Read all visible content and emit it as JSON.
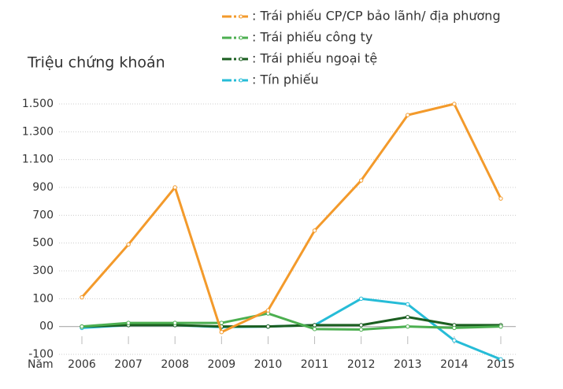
{
  "chart_data": {
    "type": "line",
    "ylabel": "Triệu chứng khoán",
    "xlabel": "Năm",
    "categories": [
      "2006",
      "2007",
      "2008",
      "2009",
      "2010",
      "2011",
      "2012",
      "2013",
      "2014",
      "2015"
    ],
    "series": [
      {
        "name": ": Trái phiếu CP/CP bảo lãnh/ địa phương",
        "color": "#f39a2b",
        "values": [
          110,
          490,
          900,
          -20,
          58,
          590,
          950,
          1420,
          1500,
          820
        ]
      },
      {
        "name": ": Trái phiếu công ty",
        "color": "#4caf50",
        "values": [
          0,
          13,
          13,
          13,
          47,
          -9,
          -11,
          0,
          -5,
          0
        ]
      },
      {
        "name": ": Trái phiếu ngoại tệ",
        "color": "#1b5e20",
        "values": [
          0,
          5,
          5,
          0,
          0,
          5,
          5,
          34,
          5,
          5
        ]
      },
      {
        "name": ": Tín phiếu",
        "color": "#26bcd7",
        "values": [
          -5,
          5,
          5,
          -2,
          0,
          5,
          100,
          80,
          -50,
          -118
        ]
      }
    ],
    "ylim": [
      -100,
      1500
    ],
    "yticks": [
      -100,
      {
        "value": 0,
        "label": "00"
      },
      100,
      300,
      500,
      700,
      900,
      {
        "value": 1100,
        "label": "1.100"
      },
      {
        "value": 1300,
        "label": "1.300"
      },
      {
        "value": 1500,
        "label": "1.500"
      }
    ],
    "grid": true
  }
}
